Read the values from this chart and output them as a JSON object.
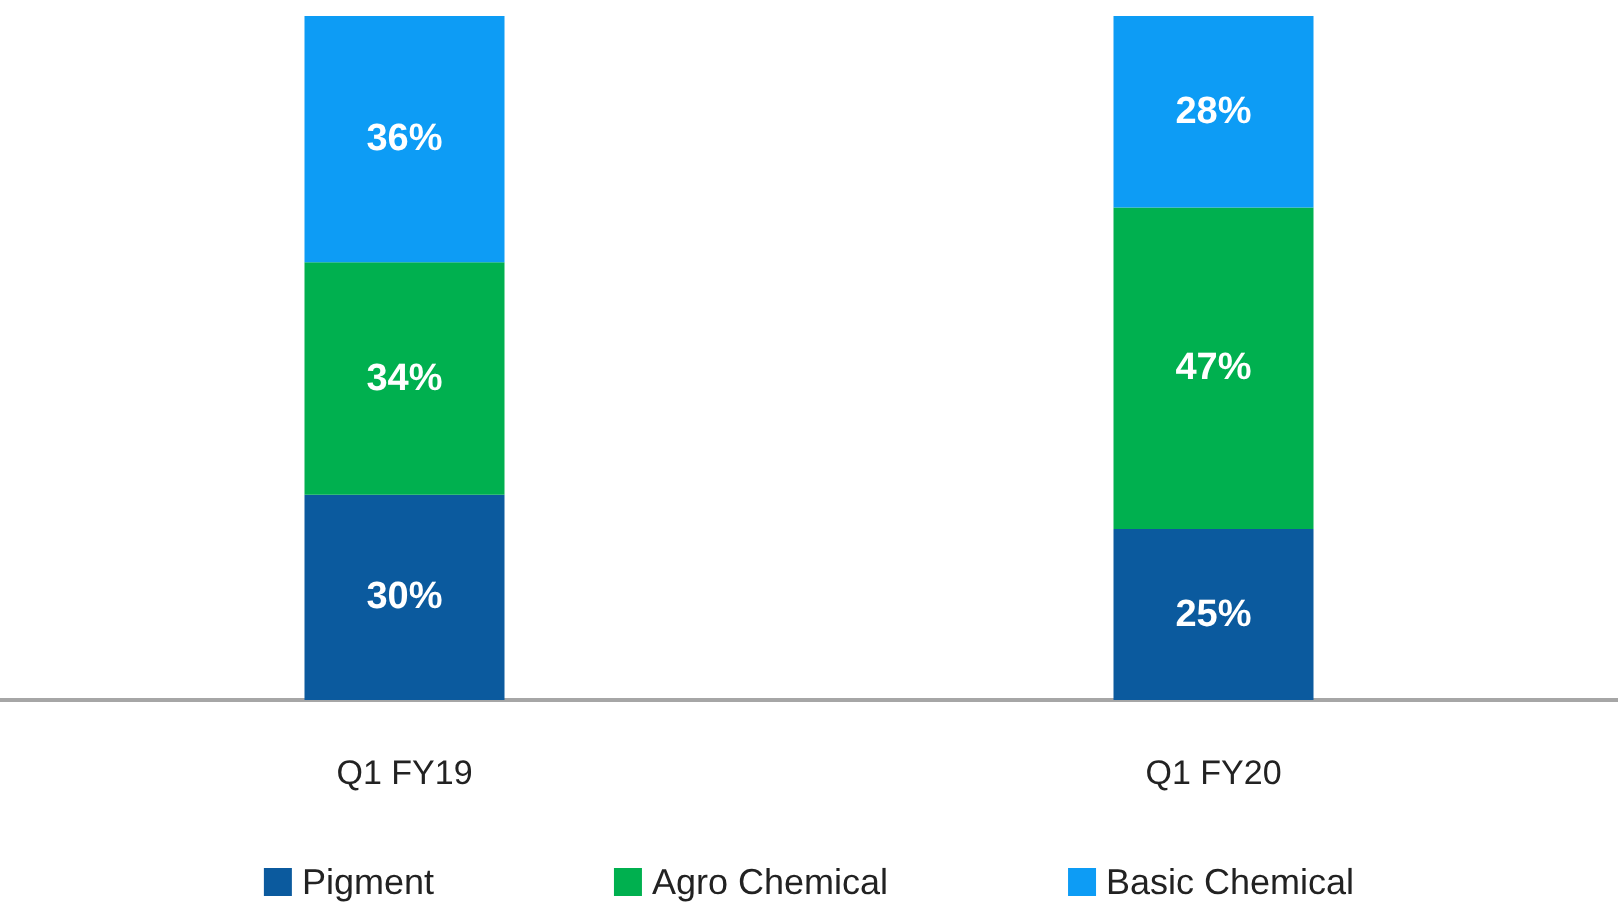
{
  "chart_data": {
    "type": "bar",
    "stacked": true,
    "categories": [
      "Q1 FY19",
      "Q1 FY20"
    ],
    "series": [
      {
        "name": "Pigment",
        "color": "#0b5a9e",
        "values": [
          30,
          25
        ],
        "value_labels": [
          "30%",
          "25%"
        ]
      },
      {
        "name": "Agro Chemical",
        "color": "#00b04f",
        "values": [
          34,
          47
        ],
        "value_labels": [
          "34%",
          "47%"
        ]
      },
      {
        "name": "Basic Chemical",
        "color": "#0d9cf5",
        "values": [
          36,
          28
        ],
        "value_labels": [
          "36%",
          "28%"
        ]
      }
    ],
    "legend": "bottom"
  }
}
